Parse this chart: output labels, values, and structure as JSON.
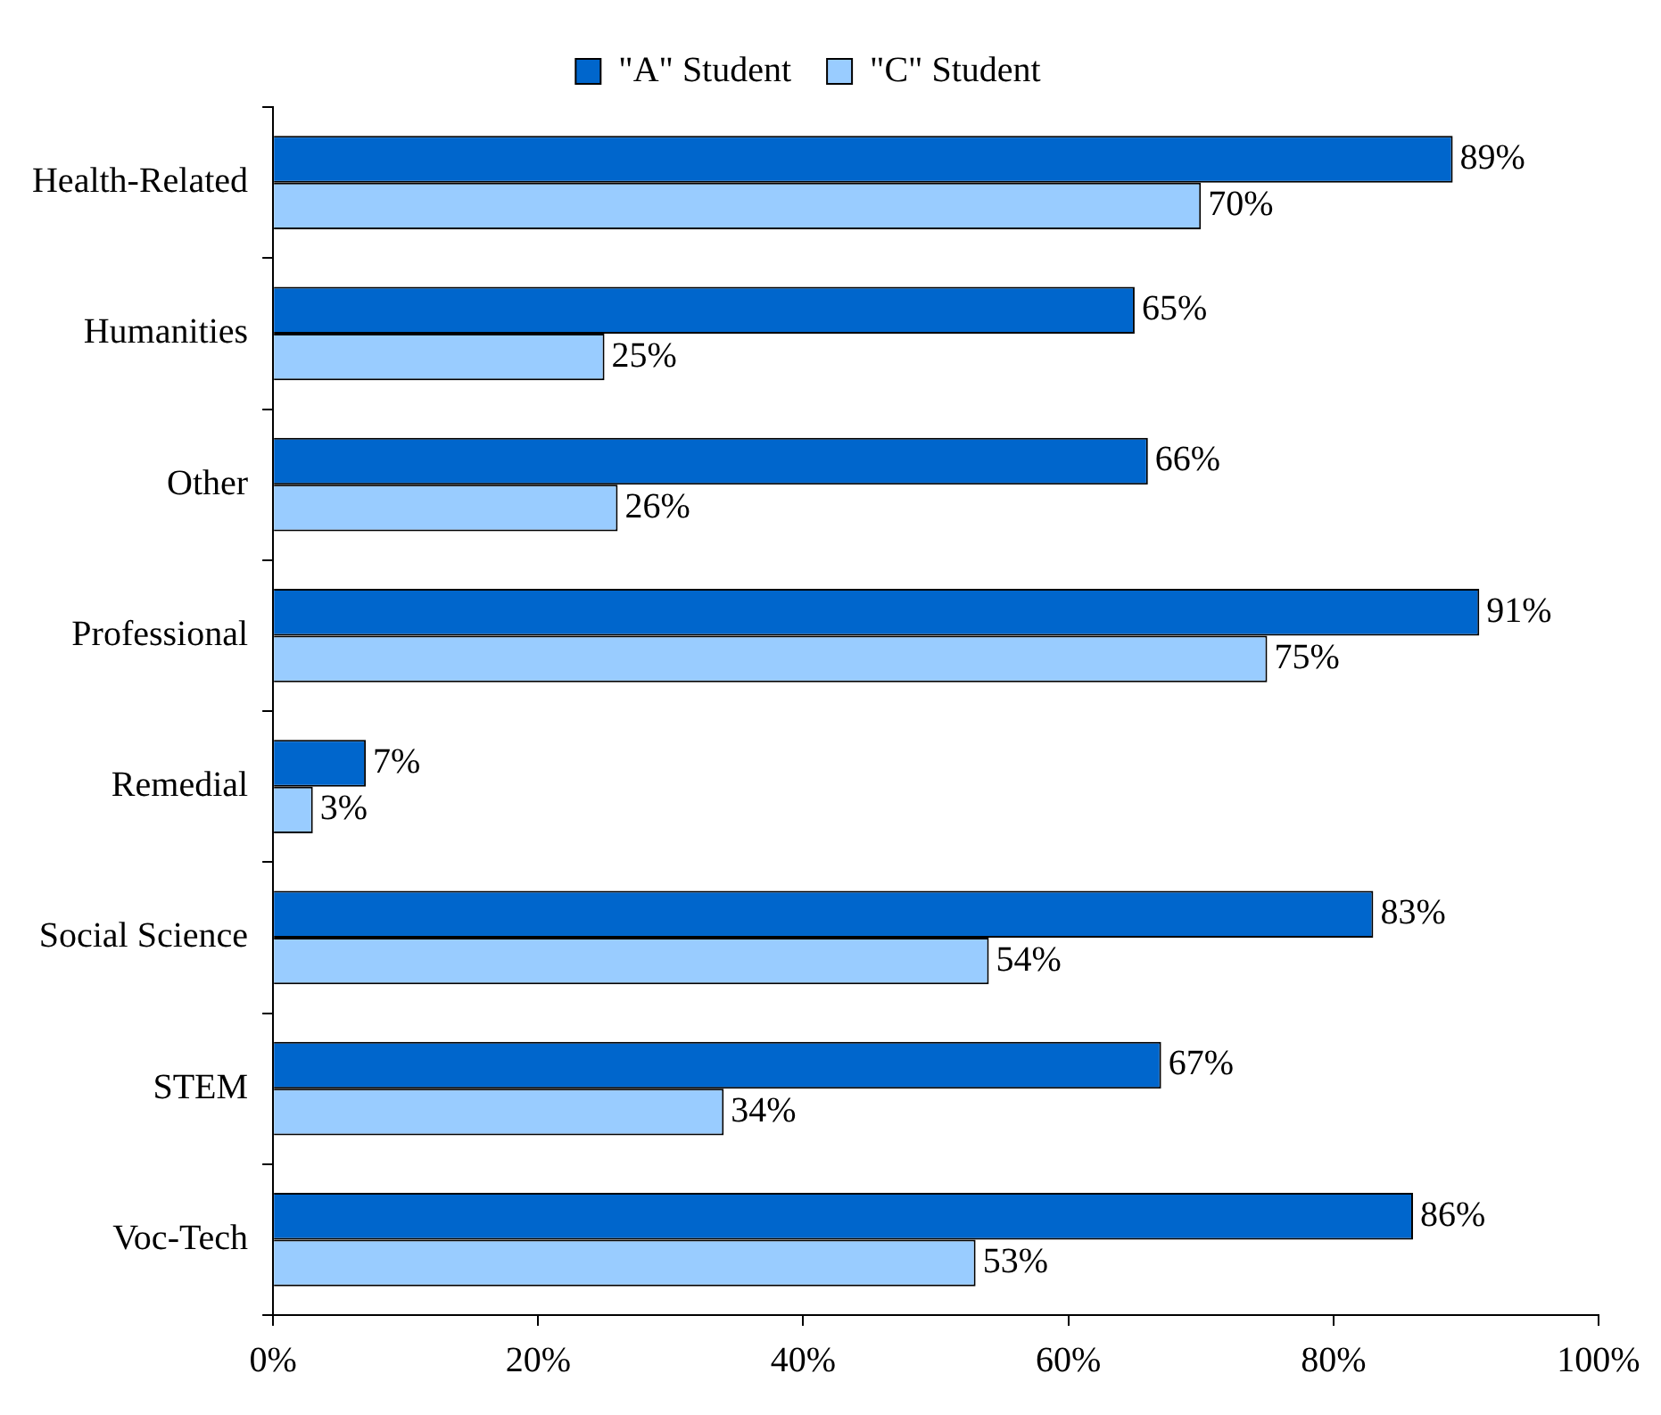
{
  "chart_data": {
    "type": "bar",
    "orientation": "horizontal",
    "legend": "top",
    "grid": false,
    "categories": [
      "Health-Related",
      "Humanities",
      "Other",
      "Professional",
      "Remedial",
      "Social Science",
      "STEM",
      "Voc-Tech"
    ],
    "series": [
      {
        "name": "\"A\" Student",
        "color": "#0066cc",
        "values": [
          89,
          65,
          66,
          91,
          7,
          83,
          67,
          86
        ],
        "value_labels": [
          "89%",
          "65%",
          "66%",
          "91%",
          "7%",
          "83%",
          "67%",
          "86%"
        ]
      },
      {
        "name": "\"C\" Student",
        "color": "#99ccff",
        "values": [
          70,
          25,
          26,
          75,
          3,
          54,
          34,
          53
        ],
        "value_labels": [
          "70%",
          "25%",
          "26%",
          "75%",
          "3%",
          "54%",
          "34%",
          "53%"
        ]
      }
    ],
    "xlim": [
      0,
      100
    ],
    "xticks": [
      {
        "value": 0,
        "label": "0%"
      },
      {
        "value": 20,
        "label": "20%"
      },
      {
        "value": 40,
        "label": "40%"
      },
      {
        "value": 60,
        "label": "60%"
      },
      {
        "value": 80,
        "label": "80%"
      },
      {
        "value": 100,
        "label": "100%"
      }
    ]
  }
}
